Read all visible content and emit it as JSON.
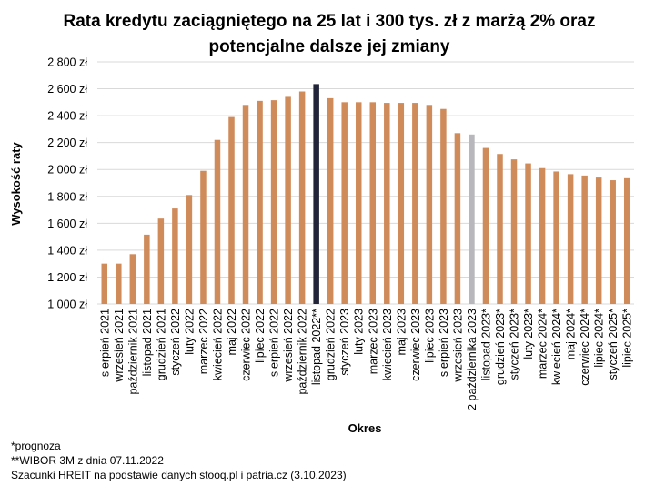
{
  "chart_data": {
    "type": "bar",
    "title_lines": [
      "Rata kredytu zaciągniętego na 25 lat i 300 tys. zł z marżą 2% oraz",
      "potencjalne dalsze jej zmiany"
    ],
    "xlabel": "Okres",
    "ylabel": "Wysokość raty",
    "ylim": [
      1000,
      2800
    ],
    "yticks": [
      1000,
      1200,
      1400,
      1600,
      1800,
      2000,
      2200,
      2400,
      2600,
      2800
    ],
    "ytick_labels": [
      "1 000 zł",
      "1 200 zł",
      "1 400 zł",
      "1 600 zł",
      "1 800 zł",
      "2 000 zł",
      "2 200 zł",
      "2 400 zł",
      "2 600 zł",
      "2 800 zł"
    ],
    "grid": true,
    "categories": [
      "sierpień 2021",
      "wrzesień 2021",
      "październik 2021",
      "listopad 2021",
      "grudzień 2021",
      "styczeń 2022",
      "luty 2022",
      "marzec 2022",
      "kwiecień 2022",
      "maj 2022",
      "czerwiec 2022",
      "lipiec 2022",
      "sierpień 2022",
      "wrzesień 2022",
      "październik 2022",
      "listopad 2022**",
      "grudzień 2022",
      "styczeń 2023",
      "luty 2023",
      "marzec 2023",
      "kwiecień 2023",
      "maj 2023",
      "czerwiec 2023",
      "lipiec 2023",
      "sierpień 2023",
      "wrzesień 2023",
      "2 października 2023",
      "listopad 2023*",
      "grudzień 2023*",
      "styczeń 2023*",
      "luty 2023*",
      "marzec 2024*",
      "kwiecień 2024*",
      "maj 2024*",
      "czerwiec 2024*",
      "lipiec 2024*",
      "styczeń 2025*",
      "lipiec 2025*"
    ],
    "values": [
      1300,
      1300,
      1370,
      1515,
      1635,
      1710,
      1810,
      1990,
      2220,
      2390,
      2480,
      2510,
      2515,
      2540,
      2580,
      2635,
      2530,
      2500,
      2500,
      2500,
      2495,
      2495,
      2495,
      2480,
      2450,
      2270,
      2260,
      2160,
      2115,
      2075,
      2045,
      2010,
      1985,
      1965,
      1955,
      1940,
      1920,
      1935
    ],
    "colors": {
      "default": "#D08B5B",
      "highlight_index_15": "#22243A",
      "highlight_index_26": "#B8B8BC",
      "grid": "#D9D9D9"
    }
  },
  "footnotes": [
    "*prognoza",
    "**WIBOR 3M z dnia 07.11.2022",
    "Szacunki HREIT na podstawie danych stooq.pl i patria.cz (3.10.2023)"
  ]
}
